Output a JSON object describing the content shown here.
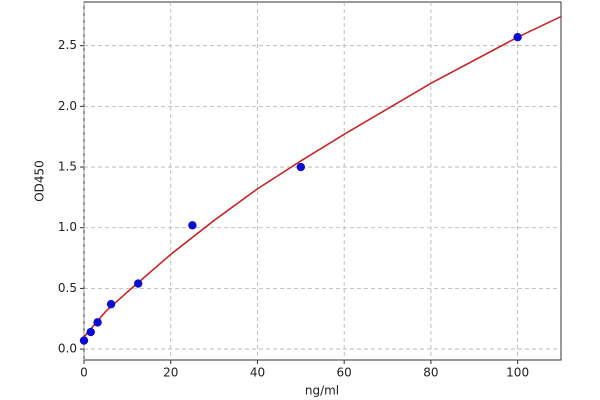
{
  "chart_data": {
    "type": "scatter",
    "x_label": "ng/ml",
    "y_label": "OD450",
    "xlim": [
      0,
      110
    ],
    "ylim": [
      -0.09,
      2.86
    ],
    "xticks": [
      0,
      20,
      40,
      60,
      80,
      100
    ],
    "yticks": [
      {
        "value": 0,
        "label": "0.0"
      },
      0.5,
      {
        "value": 1,
        "label": "1.0"
      },
      1.5,
      {
        "value": 2,
        "label": "2.0"
      },
      2.5
    ],
    "grid": true,
    "series": [
      {
        "type": "line",
        "color": "#c0282a",
        "x": [
          0,
          5,
          10,
          20,
          30,
          40,
          50,
          60,
          70,
          80,
          90,
          100,
          110
        ],
        "values": [
          0.1,
          0.31,
          0.47,
          0.78,
          1.06,
          1.32,
          1.55,
          1.77,
          1.98,
          2.19,
          2.38,
          2.57,
          2.74
        ]
      },
      {
        "type": "scatter",
        "color": "#0a0ad0",
        "x": [
          0,
          1.56,
          3.13,
          6.25,
          12.5,
          25,
          50,
          100
        ],
        "values": [
          0.07,
          0.14,
          0.22,
          0.37,
          0.54,
          1.02,
          1.5,
          2.57
        ]
      }
    ]
  }
}
